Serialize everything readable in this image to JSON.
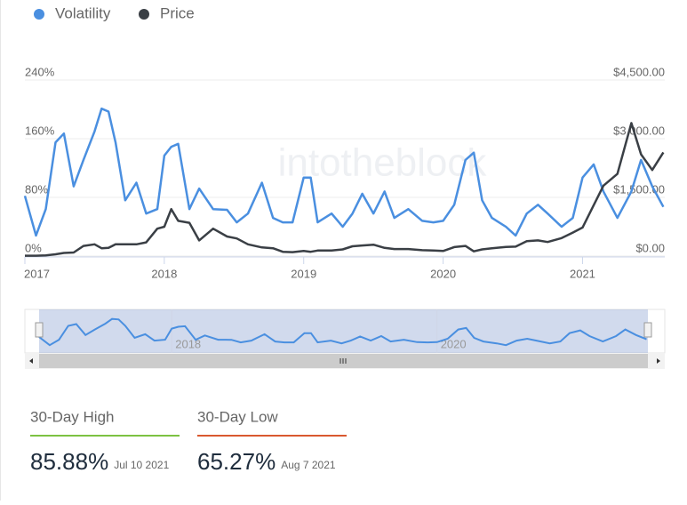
{
  "chart_data": {
    "type": "line",
    "legend": "top-left",
    "watermark": "intotheblock",
    "x": [
      2017.0,
      2017.08,
      2017.15,
      2017.22,
      2017.28,
      2017.35,
      2017.42,
      2017.5,
      2017.55,
      2017.6,
      2017.65,
      2017.72,
      2017.8,
      2017.87,
      2017.95,
      2018.0,
      2018.05,
      2018.1,
      2018.18,
      2018.25,
      2018.35,
      2018.45,
      2018.52,
      2018.6,
      2018.7,
      2018.78,
      2018.85,
      2018.92,
      2019.0,
      2019.05,
      2019.1,
      2019.2,
      2019.28,
      2019.35,
      2019.42,
      2019.5,
      2019.58,
      2019.65,
      2019.75,
      2019.85,
      2019.93,
      2020.0,
      2020.08,
      2020.16,
      2020.22,
      2020.28,
      2020.35,
      2020.45,
      2020.52,
      2020.6,
      2020.68,
      2020.75,
      2020.85,
      2020.93,
      2021.0,
      2021.08,
      2021.15,
      2021.25,
      2021.35,
      2021.42,
      2021.5,
      2021.58
    ],
    "series": [
      {
        "name": "Volatility",
        "color": "#4a8fe0",
        "axis": "y",
        "values": [
          82,
          28,
          64,
          155,
          167,
          95,
          131,
          170,
          201,
          197,
          155,
          76,
          100,
          58,
          64,
          137,
          149,
          153,
          64,
          92,
          64,
          63,
          46,
          58,
          100,
          52,
          46,
          46,
          107,
          107,
          46,
          58,
          40,
          58,
          85,
          58,
          88,
          52,
          64,
          48,
          46,
          48,
          70,
          131,
          141,
          76,
          52,
          40,
          28,
          58,
          70,
          58,
          40,
          52,
          107,
          125,
          88,
          52,
          88,
          131,
          95,
          67
        ]
      },
      {
        "name": "Price",
        "color": "#3a3f45",
        "axis": "y2",
        "values": [
          8,
          10,
          15,
          45,
          80,
          90,
          260,
          300,
          200,
          210,
          300,
          300,
          300,
          350,
          700,
          750,
          1200,
          900,
          850,
          400,
          700,
          500,
          450,
          300,
          220,
          200,
          110,
          100,
          130,
          110,
          140,
          140,
          170,
          250,
          270,
          290,
          210,
          180,
          180,
          150,
          140,
          130,
          230,
          260,
          120,
          170,
          200,
          235,
          240,
          380,
          400,
          360,
          460,
          600,
          730,
          1300,
          1800,
          2100,
          3400,
          2600,
          2200,
          2650
        ]
      }
    ],
    "xlim": [
      2017.0,
      2021.59
    ],
    "xticks": [
      2017,
      2018,
      2019,
      2020,
      2021
    ],
    "ylim": [
      0,
      240
    ],
    "yticks": [
      {
        "value": 0,
        "label": "0%"
      },
      {
        "value": 80,
        "label": "80%"
      },
      {
        "value": 160,
        "label": "160%"
      },
      {
        "value": 240,
        "label": "240%"
      }
    ],
    "y2lim": [
      0,
      4500
    ],
    "y2ticks": [
      {
        "value": 0,
        "label": "$0.00"
      },
      {
        "value": 1500,
        "label": "$1,500.00"
      },
      {
        "value": 3000,
        "label": "$3,000.00"
      },
      {
        "value": 4500,
        "label": "$4,500.00"
      }
    ],
    "grid": true
  },
  "stats": [
    {
      "label": "30-Day High",
      "value": "85.88%",
      "date": "Jul 10 2021",
      "color": "#7cc242"
    },
    {
      "label": "30-Day Low",
      "value": "65.27%",
      "date": "Aug 7 2021",
      "color": "#d9582f"
    }
  ]
}
